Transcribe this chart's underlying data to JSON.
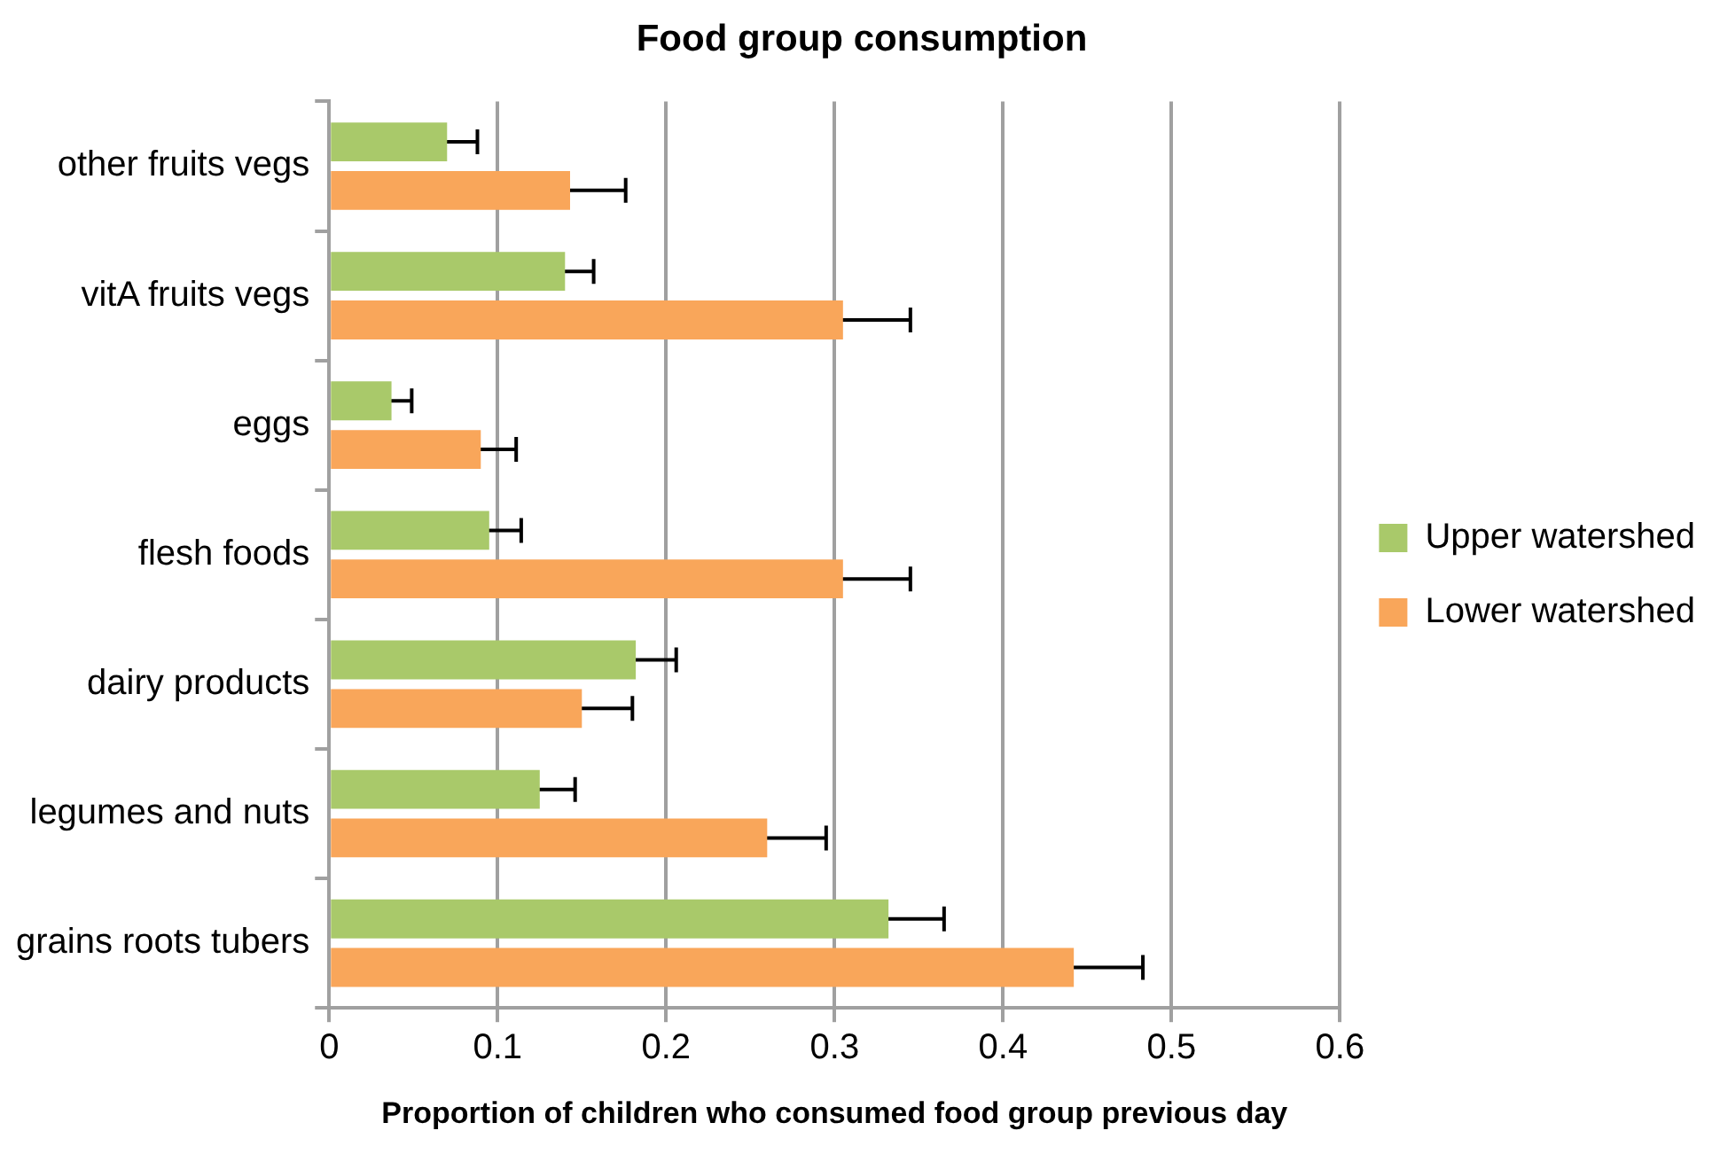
{
  "chart_data": {
    "type": "bar",
    "orientation": "horizontal",
    "title": "Food group consumption",
    "xlabel": "Proportion of children who consumed food group previous day",
    "categories": [
      "other fruits vegs",
      "vitA fruits vegs",
      "eggs",
      "flesh foods",
      "dairy products",
      "legumes and nuts",
      "grains roots tubers"
    ],
    "series": [
      {
        "name": "Upper watershed",
        "color": "#a9c96a",
        "values": [
          0.07,
          0.14,
          0.037,
          0.095,
          0.182,
          0.125,
          0.332
        ],
        "errors": [
          0.018,
          0.017,
          0.012,
          0.019,
          0.024,
          0.021,
          0.033
        ]
      },
      {
        "name": "Lower watershed",
        "color": "#f9a65a",
        "values": [
          0.143,
          0.305,
          0.09,
          0.305,
          0.15,
          0.26,
          0.442
        ],
        "errors": [
          0.033,
          0.04,
          0.021,
          0.04,
          0.03,
          0.035,
          0.041
        ]
      }
    ],
    "xlim": [
      0,
      0.6
    ],
    "xticks": [
      0,
      0.1,
      0.2,
      0.3,
      0.4,
      0.5,
      0.6
    ],
    "grid": "x",
    "legend": "right"
  }
}
